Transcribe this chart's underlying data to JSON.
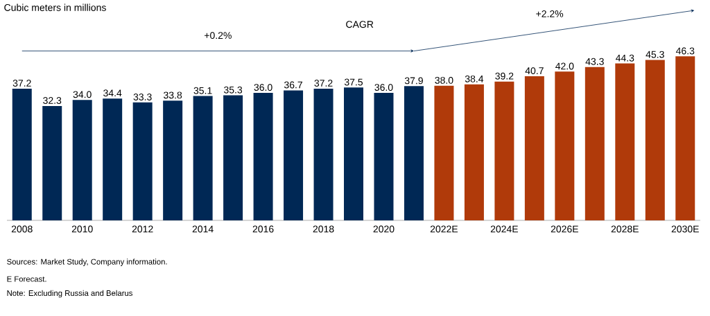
{
  "chart_data": {
    "type": "bar",
    "title": "Cubic meters in millions",
    "categories": [
      "2008",
      null,
      "2010",
      null,
      "2012",
      null,
      "2014",
      null,
      "2016",
      null,
      "2018",
      null,
      "2020",
      null,
      "2022E",
      null,
      "2024E",
      null,
      "2026E",
      null,
      "2028E",
      null,
      "2030E"
    ],
    "values": [
      37.2,
      32.3,
      34.0,
      34.4,
      33.3,
      33.8,
      35.1,
      35.3,
      36.0,
      36.7,
      37.2,
      37.5,
      36.0,
      37.9,
      38.0,
      38.4,
      39.2,
      40.7,
      42.0,
      43.3,
      44.3,
      45.3,
      46.3
    ],
    "colors": [
      "#002855",
      "#002855",
      "#002855",
      "#002855",
      "#002855",
      "#002855",
      "#002855",
      "#002855",
      "#002855",
      "#002855",
      "#002855",
      "#002855",
      "#002855",
      "#002855",
      "#b03a0a",
      "#b03a0a",
      "#b03a0a",
      "#b03a0a",
      "#b03a0a",
      "#b03a0a",
      "#b03a0a",
      "#b03a0a",
      "#b03a0a"
    ],
    "value_labels": [
      "37.2",
      "32.3",
      "34.0",
      "34.4",
      "33.3",
      "33.8",
      "35.1",
      "35.3",
      "36.0",
      "36.7",
      "37.2",
      "37.5",
      "36.0",
      "37.9",
      "38.0",
      "38.4",
      "39.2",
      "40.7",
      "42.0",
      "43.3",
      "44.3",
      "45.3",
      "46.3"
    ],
    "tick_labels": "x",
    "annotations": [
      "+0.2%",
      "CAGR",
      "+2.2%",
      "Sources: Market Study, Company information.",
      "E Forecast.",
      "Note: Excluding Russia and Belarus"
    ]
  }
}
